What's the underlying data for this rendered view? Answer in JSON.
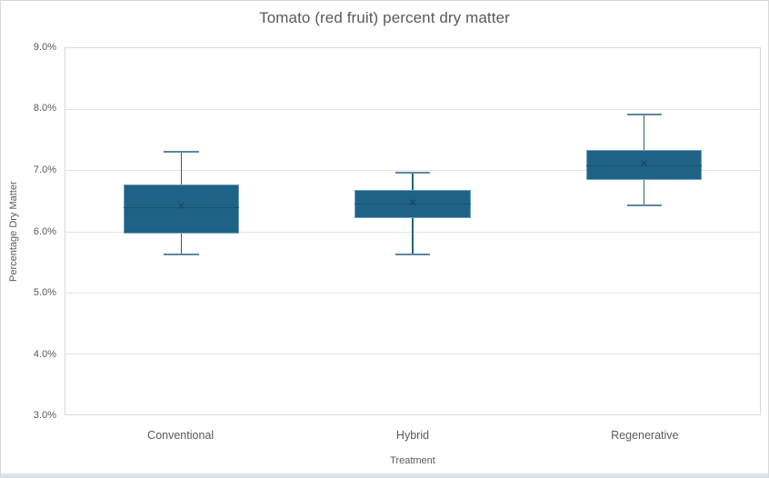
{
  "title": "Tomato (red fruit) percent dry matter",
  "y_axis": {
    "title": "Percentage Dry Matter",
    "tick_labels": [
      "9.0%",
      "8.0%",
      "7.0%",
      "6.0%",
      "5.0%",
      "4.0%",
      "3.0%"
    ],
    "min": 3.0,
    "max": 9.0,
    "step": 1.0
  },
  "x_axis": {
    "title": "Treatment"
  },
  "chart_data": {
    "type": "box",
    "title": "Tomato (red fruit) percent dry matter",
    "xlabel": "Treatment",
    "ylabel": "Percentage Dry Matter",
    "ylim": [
      3.0,
      9.0
    ],
    "y_tick_step": 1.0,
    "y_tick_format": "percent",
    "grid": "horizontal",
    "legend": "none",
    "categories": [
      "Conventional",
      "Hybrid",
      "Regenerative"
    ],
    "boxes": [
      {
        "category": "Conventional",
        "min": 5.6,
        "q1": 5.97,
        "median": 6.4,
        "mean": 6.4,
        "q3": 6.76,
        "max": 7.32
      },
      {
        "category": "Hybrid",
        "min": 5.6,
        "q1": 6.21,
        "median": 6.46,
        "mean": 6.46,
        "q3": 6.67,
        "max": 6.98
      },
      {
        "category": "Regenerative",
        "min": 6.41,
        "q1": 6.84,
        "median": 7.08,
        "mean": 7.09,
        "q3": 7.33,
        "max": 7.93
      }
    ]
  },
  "colors": {
    "box_fill": "#1F6287",
    "box_border": "#6FA0BC",
    "median_line": "#1A5470",
    "whisker": "#27617F",
    "whisker_cap": "#5D87A1",
    "mean_marker": "#1B4357",
    "gridline": "#E3E3E3",
    "plot_border": "#D9D9D9",
    "chart_border": "#D9D9D9",
    "text": "#595959",
    "bottom_strip": "#DDE6EF"
  },
  "icons": {
    "mean_marker_glyph": "✕"
  }
}
